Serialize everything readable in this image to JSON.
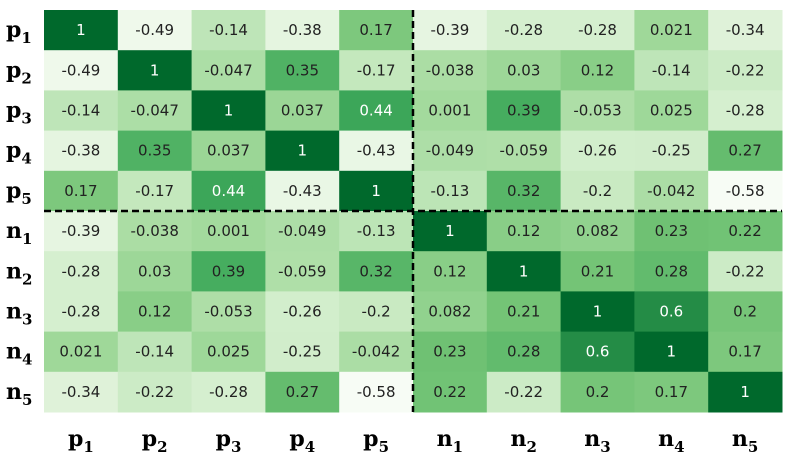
{
  "chart_data": {
    "type": "heatmap",
    "colormap": "Greens",
    "row_labels": [
      {
        "base": "p",
        "sub": "1"
      },
      {
        "base": "p",
        "sub": "2"
      },
      {
        "base": "p",
        "sub": "3"
      },
      {
        "base": "p",
        "sub": "4"
      },
      {
        "base": "p",
        "sub": "5"
      },
      {
        "base": "n",
        "sub": "1"
      },
      {
        "base": "n",
        "sub": "2"
      },
      {
        "base": "n",
        "sub": "3"
      },
      {
        "base": "n",
        "sub": "4"
      },
      {
        "base": "n",
        "sub": "5"
      }
    ],
    "col_labels": [
      {
        "base": "p",
        "sub": "1"
      },
      {
        "base": "p",
        "sub": "2"
      },
      {
        "base": "p",
        "sub": "3"
      },
      {
        "base": "p",
        "sub": "4"
      },
      {
        "base": "p",
        "sub": "5"
      },
      {
        "base": "n",
        "sub": "1"
      },
      {
        "base": "n",
        "sub": "2"
      },
      {
        "base": "n",
        "sub": "3"
      },
      {
        "base": "n",
        "sub": "4"
      },
      {
        "base": "n",
        "sub": "5"
      }
    ],
    "values": [
      [
        1,
        -0.49,
        -0.14,
        -0.38,
        0.17,
        -0.39,
        -0.28,
        -0.28,
        0.021,
        -0.34
      ],
      [
        -0.49,
        1,
        -0.047,
        0.35,
        -0.17,
        -0.038,
        0.03,
        0.12,
        -0.14,
        -0.22
      ],
      [
        -0.14,
        -0.047,
        1,
        0.037,
        0.44,
        0.001,
        0.39,
        -0.053,
        0.025,
        -0.28
      ],
      [
        -0.38,
        0.35,
        0.037,
        1,
        -0.43,
        -0.049,
        -0.059,
        -0.26,
        -0.25,
        0.27
      ],
      [
        0.17,
        -0.17,
        0.44,
        -0.43,
        1,
        -0.13,
        0.32,
        -0.2,
        -0.042,
        -0.58
      ],
      [
        -0.39,
        -0.038,
        0.001,
        -0.049,
        -0.13,
        1,
        0.12,
        0.082,
        0.23,
        0.22
      ],
      [
        -0.28,
        0.03,
        0.39,
        -0.059,
        0.32,
        0.12,
        1,
        0.21,
        0.28,
        -0.22
      ],
      [
        -0.28,
        0.12,
        -0.053,
        -0.26,
        -0.2,
        0.082,
        0.21,
        1,
        0.6,
        0.2
      ],
      [
        0.021,
        -0.14,
        0.025,
        -0.25,
        -0.042,
        0.23,
        0.28,
        0.6,
        1,
        0.17
      ],
      [
        -0.34,
        -0.22,
        -0.28,
        0.27,
        -0.58,
        0.22,
        -0.22,
        0.2,
        0.17,
        1
      ]
    ],
    "value_range": [
      -0.58,
      1
    ],
    "block_divider_after_index": 4,
    "divider_style": "dashed",
    "legend": "none",
    "colors": {
      "low": "#f7fcf5",
      "high": "#00692c",
      "text_dark": "#222222",
      "text_light": "#ffffff",
      "divider": "#000000"
    }
  }
}
